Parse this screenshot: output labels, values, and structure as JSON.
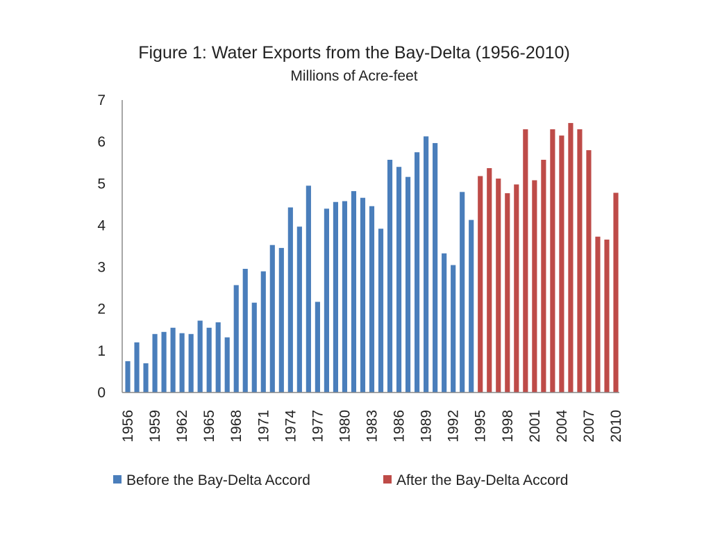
{
  "chart_data": {
    "type": "bar",
    "title": "Figure 1: Water Exports from the Bay-Delta (1956-2010)",
    "subtitle": "Millions of Acre-feet",
    "xlabel": "",
    "ylabel": "",
    "ylim": [
      0,
      7
    ],
    "yticks": [
      "0",
      "1",
      "2",
      "3",
      "4",
      "5",
      "6",
      "7"
    ],
    "grid": false,
    "legend_position": "bottom",
    "tick_labels": [
      "1956",
      "1959",
      "1962",
      "1965",
      "1968",
      "1971",
      "1974",
      "1977",
      "1980",
      "1983",
      "1986",
      "1989",
      "1992",
      "1995",
      "1998",
      "2001",
      "2004",
      "2007",
      "2010"
    ],
    "categories": [
      "1956",
      "1957",
      "1958",
      "1959",
      "1960",
      "1961",
      "1962",
      "1963",
      "1964",
      "1965",
      "1966",
      "1967",
      "1968",
      "1969",
      "1970",
      "1971",
      "1972",
      "1973",
      "1974",
      "1975",
      "1976",
      "1977",
      "1978",
      "1979",
      "1980",
      "1981",
      "1982",
      "1983",
      "1984",
      "1985",
      "1986",
      "1987",
      "1988",
      "1989",
      "1990",
      "1991",
      "1992",
      "1993",
      "1994",
      "1995",
      "1996",
      "1997",
      "1998",
      "1999",
      "2000",
      "2001",
      "2002",
      "2003",
      "2004",
      "2005",
      "2006",
      "2007",
      "2008",
      "2009",
      "2010"
    ],
    "series": [
      {
        "name": "Before the Bay-Delta Accord",
        "color": "#4a7ebb",
        "values": [
          0.75,
          1.2,
          0.7,
          1.4,
          1.45,
          1.55,
          1.42,
          1.4,
          1.72,
          1.55,
          1.68,
          1.32,
          2.57,
          2.96,
          2.15,
          2.9,
          3.53,
          3.46,
          4.43,
          3.97,
          4.95,
          2.17,
          4.4,
          4.56,
          4.58,
          4.82,
          4.66,
          4.46,
          3.92,
          5.57,
          5.4,
          5.16,
          5.75,
          6.13,
          5.97,
          3.33,
          3.05,
          4.8,
          4.13,
          null,
          null,
          null,
          null,
          null,
          null,
          null,
          null,
          null,
          null,
          null,
          null,
          null,
          null,
          null,
          null
        ]
      },
      {
        "name": "After the Bay-Delta Accord",
        "color": "#be4b48",
        "values": [
          null,
          null,
          null,
          null,
          null,
          null,
          null,
          null,
          null,
          null,
          null,
          null,
          null,
          null,
          null,
          null,
          null,
          null,
          null,
          null,
          null,
          null,
          null,
          null,
          null,
          null,
          null,
          null,
          null,
          null,
          null,
          null,
          null,
          null,
          null,
          null,
          null,
          null,
          null,
          5.18,
          5.37,
          5.12,
          4.77,
          4.98,
          6.3,
          5.08,
          5.57,
          6.3,
          6.15,
          6.45,
          6.3,
          5.8,
          3.73,
          3.66,
          4.78
        ]
      }
    ]
  }
}
